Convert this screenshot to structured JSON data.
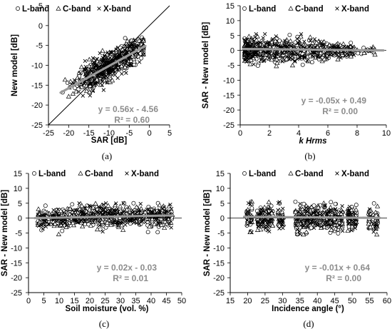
{
  "chart_data": [
    {
      "type": "scatter",
      "panel_label": "(a)",
      "xlabel": "SAR [dB]",
      "ylabel": "New model [dB]",
      "xlim": [
        -25,
        5
      ],
      "ylim": [
        -25,
        5
      ],
      "xticks": [
        -25,
        -20,
        -15,
        -10,
        -5,
        0,
        5
      ],
      "yticks": [
        -25,
        -20,
        -15,
        -10,
        -5,
        0,
        5
      ],
      "legend": [
        "L-band",
        "C-band",
        "X-band"
      ],
      "legend_position": "top-left",
      "equation": "y = 0.56x - 4.56",
      "r_squared": "R² = 0.60",
      "trendline": {
        "slope": 0.56,
        "intercept": -4.56,
        "x_range": [
          -22,
          -1
        ]
      },
      "reference_line": {
        "slope": 1,
        "intercept": 0
      },
      "point_cloud": {
        "x_range": [
          -21.5,
          -1.5
        ],
        "center_x": -10,
        "center_y": -10.1,
        "n_per_series": 260
      },
      "grid": false
    },
    {
      "type": "scatter",
      "panel_label": "(b)",
      "xlabel": "k Hrms",
      "ylabel": "SAR - New model [dB]",
      "xlim": [
        0,
        10
      ],
      "ylim": [
        -25,
        15
      ],
      "xticks": [
        0,
        2,
        4,
        6,
        8,
        10
      ],
      "yticks": [
        -25,
        -20,
        -15,
        -10,
        -5,
        0,
        5,
        10,
        15
      ],
      "legend": [
        "L-band",
        "C-band",
        "X-band"
      ],
      "legend_position": "top",
      "equation": "y = -0.05x + 0.49",
      "r_squared": "R² = 0.00",
      "trendline": {
        "slope": -0.05,
        "intercept": 0.49,
        "x_range": [
          0.2,
          9.8
        ]
      },
      "point_cloud": {
        "x_range": [
          0.2,
          9.3
        ],
        "y_range": [
          -5.5,
          5.5
        ],
        "n_per_series": 260
      },
      "grid": false
    },
    {
      "type": "scatter",
      "panel_label": "(c)",
      "xlabel": "Soil moisture (vol. %)",
      "ylabel": "SAR - New model [dB]",
      "xlim": [
        0,
        50
      ],
      "ylim": [
        -25,
        15
      ],
      "xticks": [
        0,
        5,
        10,
        15,
        20,
        25,
        30,
        35,
        40,
        45,
        50
      ],
      "yticks": [
        -25,
        -20,
        -15,
        -10,
        -5,
        0,
        5,
        10,
        15
      ],
      "legend": [
        "L-band",
        "C-band",
        "X-band"
      ],
      "legend_position": "top",
      "equation": "y = 0.02x - 0.03",
      "r_squared": "R² = 0.01",
      "trendline": {
        "slope": 0.02,
        "intercept": -0.03,
        "x_range": [
          2,
          47
        ]
      },
      "point_cloud": {
        "x_range": [
          2.5,
          47
        ],
        "y_range": [
          -5.5,
          5
        ],
        "n_per_series": 260
      },
      "grid": false
    },
    {
      "type": "scatter",
      "panel_label": "(d)",
      "xlabel": "Incidence angle (°)",
      "ylabel": "SAR - New model [dB]",
      "xlim": [
        15,
        60
      ],
      "ylim": [
        -25,
        15
      ],
      "xticks": [
        15,
        20,
        25,
        30,
        35,
        40,
        45,
        50,
        55,
        60
      ],
      "yticks": [
        -25,
        -20,
        -15,
        -10,
        -5,
        0,
        5,
        10,
        15
      ],
      "legend": [
        "L-band",
        "C-band",
        "X-band"
      ],
      "legend_position": "top",
      "equation": "y = -0.01x + 0.64",
      "r_squared": "R² = 0.00",
      "trendline": {
        "slope": -0.01,
        "intercept": 0.64,
        "x_range": [
          19,
          58
        ]
      },
      "incidence_angles": [
        20,
        21,
        23,
        24,
        25,
        26,
        27,
        29,
        30,
        34,
        35,
        36,
        37,
        38,
        39,
        40,
        41,
        42,
        43,
        44,
        45,
        46,
        47,
        49,
        50,
        51,
        55,
        56,
        57
      ],
      "point_cloud": {
        "y_range": [
          -5.5,
          5.5
        ],
        "n_per_series": 230
      },
      "grid": false
    }
  ],
  "style": {
    "trend_color": "#9a9a9a",
    "eq_color": "#8c8c8c",
    "marker_color": "#000000"
  }
}
